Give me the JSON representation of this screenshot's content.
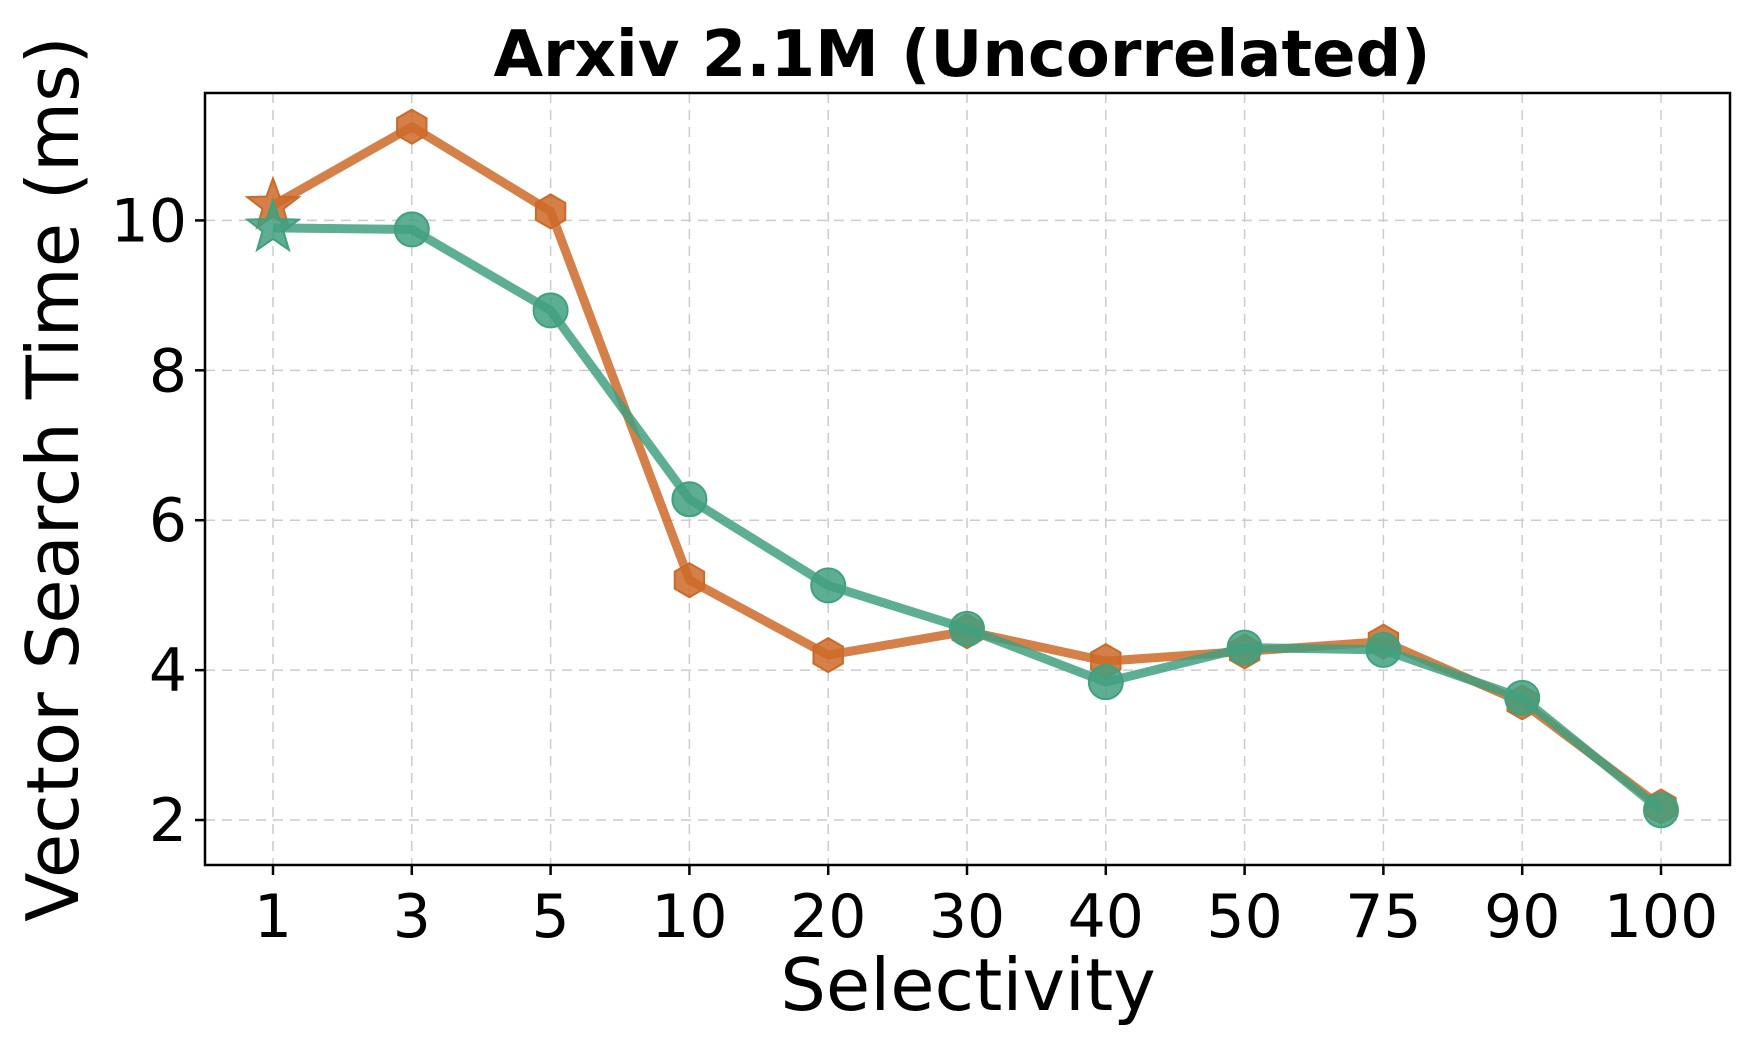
{
  "chart_data": {
    "type": "line",
    "title": "Arxiv 2.1M (Uncorrelated)",
    "xlabel": "Selectivity",
    "ylabel": "Vector Search Time (ms)",
    "categories": [
      "1",
      "3",
      "5",
      "10",
      "20",
      "30",
      "40",
      "50",
      "75",
      "90",
      "100"
    ],
    "yticks": [
      2,
      4,
      6,
      8,
      10
    ],
    "ylim": [
      1.4,
      11.7
    ],
    "grid": true,
    "legend": "none",
    "series": [
      {
        "color": "#cc6a28",
        "marker": "hexagon",
        "first_marker": "star",
        "values": [
          10.2,
          11.25,
          10.12,
          5.2,
          4.2,
          4.52,
          4.12,
          4.25,
          4.38,
          3.57,
          2.18
        ]
      },
      {
        "color": "#41a07f",
        "marker": "circle",
        "first_marker": "star",
        "values": [
          9.9,
          9.88,
          8.8,
          6.28,
          5.13,
          4.55,
          3.84,
          4.3,
          4.27,
          3.63,
          2.13
        ]
      }
    ]
  }
}
